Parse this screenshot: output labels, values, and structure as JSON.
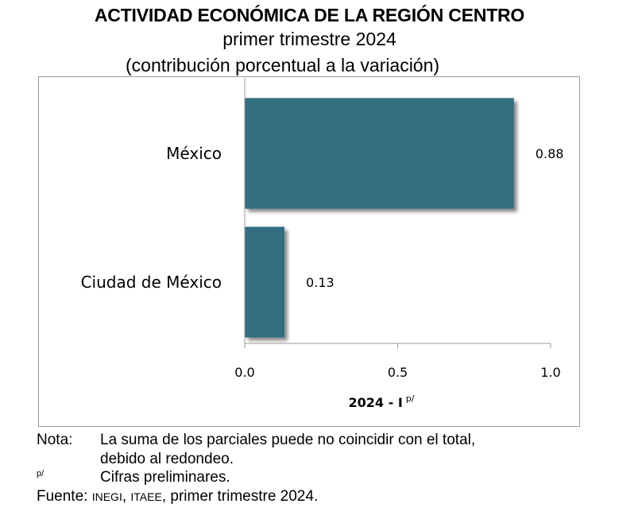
{
  "header": {
    "title": "ACTIVIDAD ECONÓMICA DE LA REGIÓN CENTRO",
    "subtitle": "primer trimestre 2024",
    "subtitle2": "(contribución porcentual a la variación)"
  },
  "chart_data": {
    "type": "bar",
    "orientation": "horizontal",
    "title": "ACTIVIDAD ECONÓMICA DE LA REGIÓN CENTRO",
    "subtitle": "primer trimestre 2024 (contribución porcentual a la variación)",
    "categories": [
      "México",
      "Ciudad de México"
    ],
    "series": [
      {
        "name": "2024 - I p/",
        "values": [
          0.88,
          0.13
        ],
        "color": "#336e80"
      }
    ],
    "data_labels": [
      "0.88",
      "0.13"
    ],
    "xlabel": "2024 - I",
    "xlabel_sup": "p/",
    "ylabel": "",
    "xlim": [
      0.0,
      1.0
    ],
    "xticks": [
      0.0,
      0.5,
      1.0
    ],
    "xtick_labels": [
      "0.0",
      "0.5",
      "1.0"
    ],
    "grid": false,
    "legend": "none"
  },
  "notes": {
    "nota_key": "Nota:",
    "nota_line1": "La suma de los parciales puede no coincidir con el total,",
    "nota_line2": "debido al redondeo.",
    "p_key": "p/",
    "p_text": "Cifras preliminares.",
    "fuente_key": "Fuente:",
    "fuente_src1": "INEGI",
    "fuente_sep": ", ",
    "fuente_src2": "ITAEE",
    "fuente_rest": ", primer trimestre 2024."
  }
}
